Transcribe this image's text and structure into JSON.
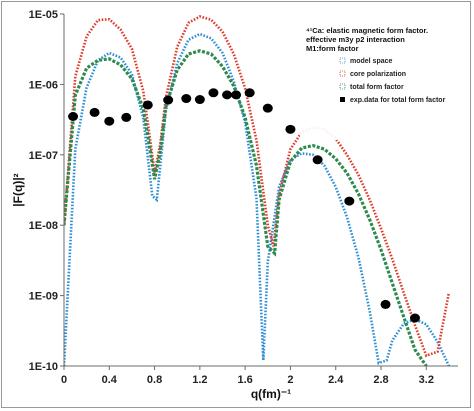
{
  "chart_data": {
    "type": "line",
    "xlabel": "q(fm)⁻¹",
    "ylabel": "|F(q)|²",
    "xlim": [
      0,
      3.48
    ],
    "ylim": [
      1e-10,
      1e-05
    ],
    "yscale": "log",
    "xticks": [
      "0",
      "0.4",
      "0.8",
      "1.2",
      "1.6",
      "2",
      "2.4",
      "2.8",
      "3.2"
    ],
    "xtick_values": [
      0,
      0.4,
      0.8,
      1.2,
      1.6,
      2.0,
      2.4,
      2.8,
      3.2
    ],
    "yticks": [
      "1E-10",
      "1E-09",
      "1E-08",
      "1E-07",
      "1E-06",
      "1E-05"
    ],
    "ytick_values": [
      1e-10,
      1e-09,
      1e-08,
      1e-07,
      1e-06,
      1e-05
    ],
    "grid": false,
    "legend_placement": "top-right",
    "title_lines": [
      "⁴¹Ca: elastic magnetic form factor.",
      "effective m3y p2 interaction",
      "M1:form factor"
    ],
    "series": [
      {
        "name": "model space",
        "color": "#2f8fd6",
        "style": "dotted",
        "x": [
          0.0,
          0.1,
          0.2,
          0.3,
          0.4,
          0.5,
          0.6,
          0.7,
          0.78,
          0.82,
          0.9,
          1.0,
          1.1,
          1.2,
          1.3,
          1.4,
          1.5,
          1.6,
          1.7,
          1.76,
          1.8,
          1.9,
          2.0,
          2.1,
          2.2,
          2.3,
          2.4,
          2.5,
          2.6,
          2.7,
          2.78,
          2.85,
          2.9,
          3.0,
          3.1,
          3.2,
          3.3,
          3.4
        ],
        "y": [
          1e-10,
          1.2e-07,
          9e-07,
          2.2e-06,
          2.8e-06,
          2.4e-06,
          1.4e-06,
          3.3e-07,
          2.6e-08,
          2.3e-08,
          4.3e-07,
          2e-06,
          4.3e-06,
          5.2e-06,
          4.5e-06,
          2.8e-06,
          1.1e-06,
          2.9e-07,
          2.4e-08,
          1.2e-10,
          3e-09,
          3.5e-08,
          8.5e-08,
          1.05e-07,
          1e-07,
          7e-08,
          3.5e-08,
          1.3e-08,
          3.5e-09,
          6e-10,
          1.1e-10,
          1.2e-10,
          2.3e-10,
          4e-10,
          4.6e-10,
          3.9e-10,
          2.2e-10,
          1e-10
        ]
      },
      {
        "name": "core polarization",
        "color": "#e03a2b",
        "style": "dotted",
        "x": [
          0.0,
          0.1,
          0.2,
          0.3,
          0.4,
          0.5,
          0.6,
          0.7,
          0.75,
          0.8,
          0.85,
          0.9,
          1.0,
          1.1,
          1.2,
          1.3,
          1.4,
          1.5,
          1.6,
          1.7,
          1.8,
          1.85,
          1.9,
          2.0,
          2.1,
          2.2,
          2.3,
          2.4,
          2.5,
          2.6,
          2.7,
          2.8,
          2.9,
          3.0,
          3.1,
          3.2,
          3.3,
          3.4
        ],
        "y": [
          1e-08,
          1.3e-06,
          4.8e-06,
          8.2e-06,
          8.4e-06,
          6e-06,
          3.2e-06,
          8e-07,
          2.2e-07,
          5.5e-08,
          1.4e-07,
          6.5e-07,
          3.4e-06,
          7.5e-06,
          9.2e-06,
          8.3e-06,
          5.6e-06,
          2.7e-06,
          8.8e-07,
          1.6e-07,
          1e-08,
          5e-09,
          2.7e-08,
          1.2e-07,
          2.1e-07,
          2.45e-07,
          2.3e-07,
          1.7e-07,
          1e-07,
          5.2e-08,
          2.3e-08,
          9e-09,
          3.3e-09,
          1.1e-09,
          3.8e-10,
          1.4e-10,
          1.6e-10,
          1.1e-09
        ]
      },
      {
        "name": "total form factor",
        "color": "#2e8a4e",
        "style": "dashed",
        "x": [
          0.0,
          0.1,
          0.2,
          0.3,
          0.4,
          0.5,
          0.6,
          0.7,
          0.75,
          0.8,
          0.85,
          0.9,
          1.0,
          1.1,
          1.2,
          1.3,
          1.4,
          1.5,
          1.6,
          1.7,
          1.8,
          1.86,
          1.9,
          2.0,
          2.1,
          2.2,
          2.3,
          2.4,
          2.5,
          2.6,
          2.7,
          2.8,
          2.9,
          3.0,
          3.1,
          3.2
        ],
        "y": [
          1e-08,
          7e-07,
          1.7e-06,
          2.2e-06,
          2.3e-06,
          1.9e-06,
          1.2e-06,
          4.5e-07,
          1.5e-07,
          4.5e-08,
          1.1e-07,
          4.8e-07,
          1.6e-06,
          2.7e-06,
          3e-06,
          2.7e-06,
          1.8e-06,
          9.5e-07,
          3.4e-07,
          7e-08,
          5e-09,
          4e-09,
          2.3e-08,
          8e-08,
          1.25e-07,
          1.35e-07,
          1.2e-07,
          8.8e-08,
          5.5e-08,
          2.8e-08,
          1.2e-08,
          4.5e-09,
          1.5e-09,
          5e-10,
          1.7e-10,
          8e-11
        ]
      },
      {
        "name": "exp.data for total form factor",
        "color": "#000000",
        "style": "markers",
        "x": [
          0.08,
          0.27,
          0.4,
          0.55,
          0.74,
          0.92,
          1.08,
          1.2,
          1.32,
          1.44,
          1.52,
          1.64,
          1.8,
          2.0,
          2.24,
          2.52,
          2.84,
          3.1
        ],
        "y": [
          3.5e-07,
          4e-07,
          3e-07,
          3.4e-07,
          5.1e-07,
          6e-07,
          6.3e-07,
          6.1e-07,
          7.6e-07,
          7.1e-07,
          7.1e-07,
          7.6e-07,
          4.6e-07,
          2.3e-07,
          8.5e-08,
          2.2e-08,
          7.5e-10,
          4.8e-10
        ]
      }
    ]
  }
}
